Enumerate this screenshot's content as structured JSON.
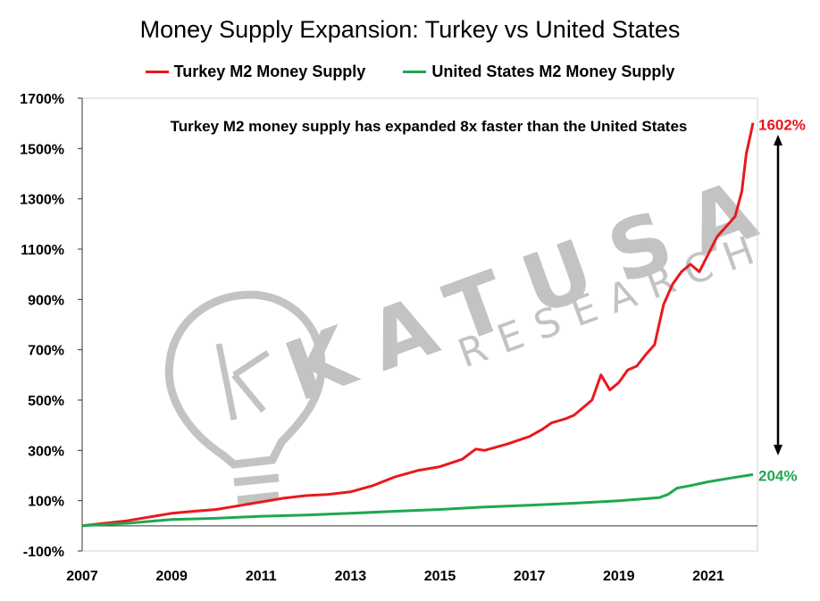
{
  "chart_data": {
    "type": "line",
    "title": "Money Supply Expansion: Turkey vs United States",
    "xlabel": "",
    "ylabel": "",
    "xlim": [
      2007,
      2022.1
    ],
    "ylim": [
      -100,
      1700
    ],
    "x_ticks": [
      "2007",
      "2009",
      "2011",
      "2013",
      "2015",
      "2017",
      "2019",
      "2021"
    ],
    "y_ticks": [
      "1700%",
      "1500%",
      "1300%",
      "1100%",
      "900%",
      "700%",
      "500%",
      "300%",
      "100%",
      "-100%"
    ],
    "legend_position": "top-center",
    "grid": false,
    "annotation": "Turkey M2 money supply has expanded 8x faster than the United States",
    "series": [
      {
        "name": "Turkey M2 Money Supply",
        "color": "#e8191d",
        "end_label": "1602%",
        "x": [
          2007.0,
          2007.5,
          2008.0,
          2008.5,
          2009.0,
          2009.5,
          2010.0,
          2010.5,
          2011.0,
          2011.5,
          2012.0,
          2012.5,
          2013.0,
          2013.5,
          2014.0,
          2014.5,
          2015.0,
          2015.5,
          2015.8,
          2016.0,
          2016.5,
          2017.0,
          2017.3,
          2017.5,
          2017.8,
          2018.0,
          2018.2,
          2018.4,
          2018.6,
          2018.8,
          2019.0,
          2019.2,
          2019.4,
          2019.6,
          2019.8,
          2020.0,
          2020.2,
          2020.4,
          2020.6,
          2020.8,
          2021.0,
          2021.2,
          2021.4,
          2021.6,
          2021.75,
          2021.85,
          2021.95,
          2022.0
        ],
        "y": [
          0,
          10,
          20,
          35,
          50,
          58,
          65,
          80,
          95,
          110,
          120,
          125,
          135,
          160,
          195,
          220,
          235,
          265,
          305,
          300,
          325,
          355,
          385,
          410,
          425,
          440,
          470,
          500,
          600,
          540,
          570,
          620,
          635,
          680,
          720,
          880,
          960,
          1010,
          1040,
          1010,
          1080,
          1150,
          1190,
          1230,
          1330,
          1480,
          1560,
          1602
        ]
      },
      {
        "name": "United States M2 Money Supply",
        "color": "#1ea84f",
        "end_label": "204%",
        "x": [
          2007.0,
          2008.0,
          2009.0,
          2010.0,
          2011.0,
          2012.0,
          2013.0,
          2014.0,
          2015.0,
          2016.0,
          2017.0,
          2018.0,
          2019.0,
          2019.9,
          2020.1,
          2020.3,
          2020.6,
          2021.0,
          2021.5,
          2022.0
        ],
        "y": [
          0,
          10,
          25,
          30,
          38,
          43,
          50,
          58,
          65,
          75,
          82,
          90,
          100,
          112,
          125,
          150,
          160,
          175,
          190,
          204
        ]
      }
    ]
  },
  "watermark": {
    "brand": "KATUSA",
    "sub": "RESEARCH"
  }
}
